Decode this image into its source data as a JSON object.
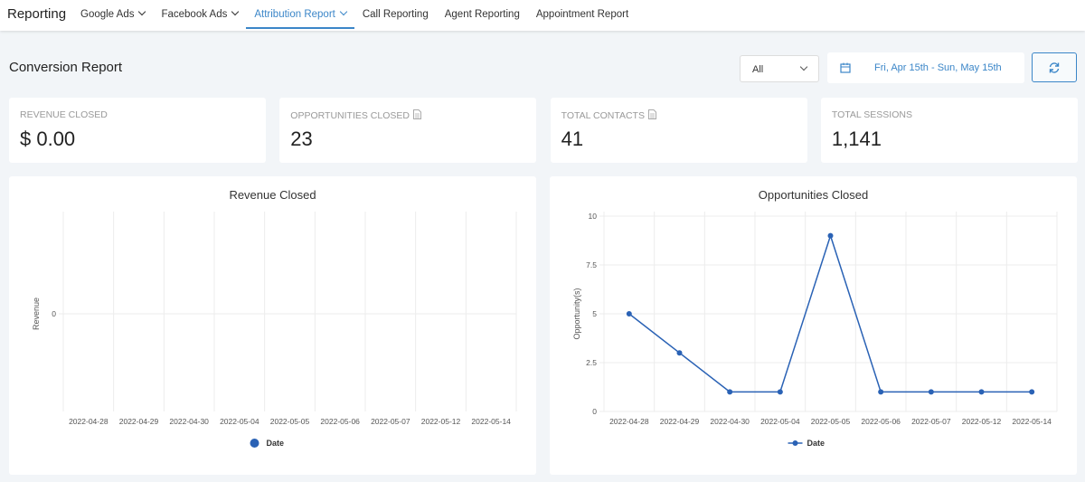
{
  "nav": {
    "title": "Reporting",
    "active_index": 2,
    "items": [
      {
        "label": "Google Ads",
        "dropdown": true
      },
      {
        "label": "Facebook Ads",
        "dropdown": true
      },
      {
        "label": "Attribution Report",
        "dropdown": true
      },
      {
        "label": "Call Reporting",
        "dropdown": false
      },
      {
        "label": "Agent Reporting",
        "dropdown": false
      },
      {
        "label": "Appointment Report",
        "dropdown": false
      }
    ]
  },
  "header": {
    "title": "Conversion Report",
    "filter": "All",
    "date_range": "Fri, Apr 15th - Sun, May 15th"
  },
  "cards": [
    {
      "label": "REVENUE CLOSED",
      "value": "$ 0.00",
      "icon": false
    },
    {
      "label": "OPPORTUNITIES CLOSED",
      "value": "23",
      "icon": true
    },
    {
      "label": "TOTAL CONTACTS",
      "value": "41",
      "icon": true
    },
    {
      "label": "TOTAL SESSIONS",
      "value": "1,141",
      "icon": false
    }
  ],
  "chart_data": [
    {
      "type": "line",
      "title": "Revenue Closed",
      "y_label": "Revenue",
      "categories": [
        "2022-04-28",
        "2022-04-29",
        "2022-04-30",
        "2022-05-04",
        "2022-05-05",
        "2022-05-06",
        "2022-05-07",
        "2022-05-12",
        "2022-05-14"
      ],
      "series": [
        {
          "name": "Date",
          "color": "#2a62b5",
          "values": [
            null,
            null,
            null,
            null,
            null,
            null,
            null,
            null,
            null
          ]
        }
      ],
      "ylim": [
        -1,
        1
      ],
      "yticks": [
        0
      ],
      "grid": true
    },
    {
      "type": "line",
      "title": "Opportunities Closed",
      "y_label": "Opportunity(s)",
      "categories": [
        "2022-04-28",
        "2022-04-29",
        "2022-04-30",
        "2022-05-04",
        "2022-05-05",
        "2022-05-06",
        "2022-05-07",
        "2022-05-12",
        "2022-05-14"
      ],
      "series": [
        {
          "name": "Date",
          "color": "#2a62b5",
          "values": [
            5,
            3,
            1,
            1,
            9,
            1,
            1,
            1,
            1
          ]
        }
      ],
      "ylim": [
        0,
        10
      ],
      "yticks": [
        0,
        2.5,
        5,
        7.5,
        10
      ],
      "grid": true
    }
  ]
}
